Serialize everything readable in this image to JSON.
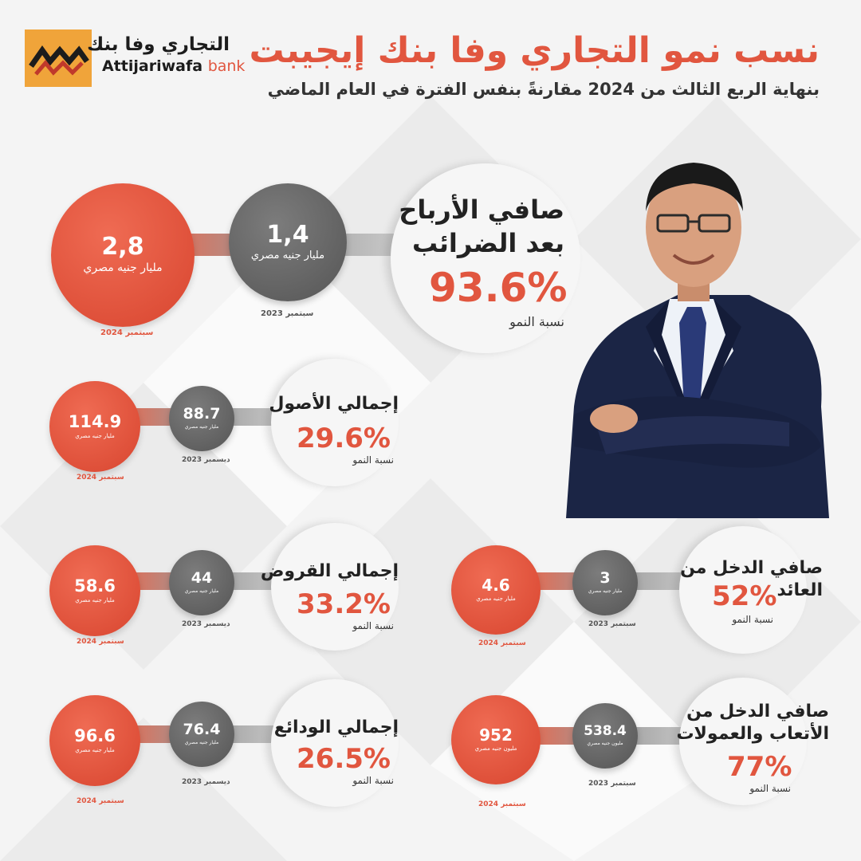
{
  "header": {
    "logo_ar": "التجاري وفا بنك",
    "logo_en_main": "Attijariwafa",
    "logo_en_bank": "bank",
    "title": "نسب نمو التجاري وفا بنك إيجيبت",
    "subtitle": "بنهاية الربع الثالث من 2024 مقارنةً بنفس الفترة في العام الماضي"
  },
  "profits": {
    "label_line1": "صافي الأرباح",
    "label_line2": "بعد الضرائب",
    "pct": "93.6%",
    "rate_label": "نسبة النمو",
    "prev_value": "1,4",
    "prev_unit": "مليار جنيه مصري",
    "prev_date": "سبتمبر 2023",
    "curr_value": "2,8",
    "curr_unit": "مليار جنيه مصري",
    "curr_date": "سبتمبر 2024"
  },
  "assets": {
    "label": "إجمالي الأصول",
    "pct": "29.6%",
    "rate_label": "نسبة النمو",
    "prev_value": "88.7",
    "prev_unit": "مليار جنيه مصري",
    "prev_date": "ديسمبر 2023",
    "curr_value": "114.9",
    "curr_unit": "مليار جنيه مصري",
    "curr_date": "سبتمبر 2024"
  },
  "loans": {
    "label": "إجمالي القروض",
    "pct": "33.2%",
    "rate_label": "نسبة النمو",
    "prev_value": "44",
    "prev_unit": "مليار جنيه مصري",
    "prev_date": "ديسمبر 2023",
    "curr_value": "58.6",
    "curr_unit": "مليار جنيه مصري",
    "curr_date": "سبتمبر 2024"
  },
  "deposits": {
    "label": "إجمالي الودائع",
    "pct": "26.5%",
    "rate_label": "نسبة النمو",
    "prev_value": "76.4",
    "prev_unit": "مليار جنيه مصري",
    "prev_date": "ديسمبر 2023",
    "curr_value": "96.6",
    "curr_unit": "مليار جنيه مصري",
    "curr_date": "سبتمبر 2024"
  },
  "interest": {
    "label_line1": "صافي الدخل من",
    "label_line2": "العائد",
    "pct": "52%",
    "rate_label": "نسبة النمو",
    "prev_value": "3",
    "prev_unit": "مليار جنيه مصري",
    "prev_date": "سبتمبر 2023",
    "curr_value": "4.6",
    "curr_unit": "مليار جنيه مصري",
    "curr_date": "سبتمبر 2024"
  },
  "fees": {
    "label_line1": "صافي الدخل من",
    "label_line2": "الأتعاب والعمولات",
    "pct": "77%",
    "rate_label": "نسبة النمو",
    "prev_value": "538.4",
    "prev_unit": "مليون جنيه مصري",
    "prev_date": "سبتمبر 2023",
    "curr_value": "952",
    "curr_unit": "مليون جنيه مصري",
    "curr_date": "سبتمبر 2024"
  },
  "colors": {
    "accent": "#e1563f",
    "gray": "#5e5e5e",
    "logo_bg": "#f0a43a"
  }
}
